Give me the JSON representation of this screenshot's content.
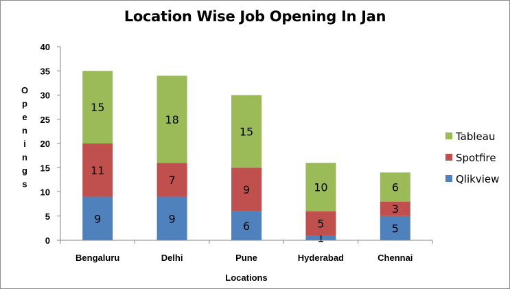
{
  "chart_data": {
    "type": "bar",
    "stacked": true,
    "title": "Location Wise Job Opening In Jan",
    "xlabel": "Locations",
    "ylabel": "Openings",
    "categories": [
      "Bengaluru",
      "Delhi",
      "Pune",
      "Hyderabad",
      "Chennai"
    ],
    "ylim": [
      0,
      40
    ],
    "yticks": [
      0,
      5,
      10,
      15,
      20,
      25,
      30,
      35,
      40
    ],
    "grid": false,
    "legend_position": "right",
    "series": [
      {
        "name": "Qlikview",
        "color": "#4f81bd",
        "values": [
          9,
          9,
          6,
          1,
          5
        ]
      },
      {
        "name": "Spotfire",
        "color": "#c0504d",
        "values": [
          11,
          7,
          9,
          5,
          3
        ]
      },
      {
        "name": "Tableau",
        "color": "#9bbb59",
        "values": [
          15,
          18,
          15,
          10,
          6
        ]
      }
    ]
  }
}
